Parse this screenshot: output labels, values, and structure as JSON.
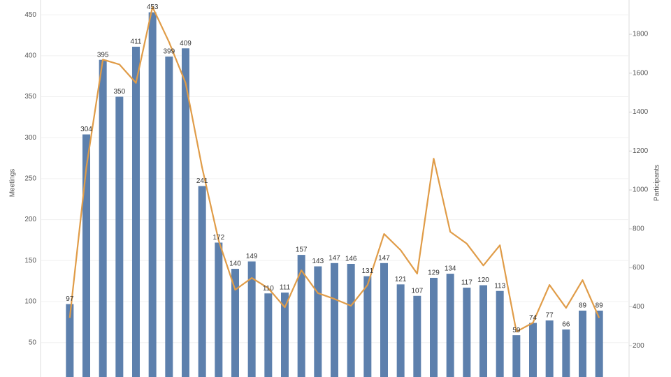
{
  "chart_data": {
    "type": "bar-line",
    "categories": [
      null,
      null,
      null,
      null,
      null,
      null,
      null,
      null,
      null,
      null,
      null,
      null,
      null,
      null,
      null,
      null,
      null,
      null,
      null,
      null,
      null,
      null,
      null,
      null,
      null,
      null,
      null,
      null,
      null,
      null,
      null,
      null,
      null
    ],
    "y_label": "Meetings",
    "y2_label": "Participants",
    "series": [
      {
        "name": "Meetings",
        "type": "bar",
        "color": "#5d80ad",
        "values": [
          97,
          304,
          395,
          350,
          411,
          453,
          399,
          409,
          241,
          172,
          140,
          149,
          110,
          111,
          157,
          143,
          147,
          146,
          131,
          147,
          121,
          107,
          129,
          134,
          117,
          120,
          113,
          59,
          74,
          77,
          66,
          89,
          89
        ]
      },
      {
        "name": "Participants",
        "type": "line",
        "axis": "y2",
        "color": "#e09c48",
        "values": [
          343,
          1115,
          1670,
          1645,
          1550,
          1940,
          1760,
          1550,
          1115,
          740,
          487,
          548,
          495,
          397,
          587,
          470,
          440,
          405,
          512,
          774,
          691,
          570,
          1161,
          785,
          724,
          612,
          716,
          272,
          318,
          512,
          394,
          537,
          343
        ]
      }
    ],
    "ylim": [
      8,
      468
    ],
    "yticks": [
      50,
      100,
      150,
      200,
      250,
      300,
      350,
      400,
      450
    ],
    "y2lim": [
      39,
      1976
    ],
    "y2ticks": [
      200,
      400,
      600,
      800,
      1000,
      1200,
      1400,
      1600,
      1800
    ],
    "grid": true
  }
}
